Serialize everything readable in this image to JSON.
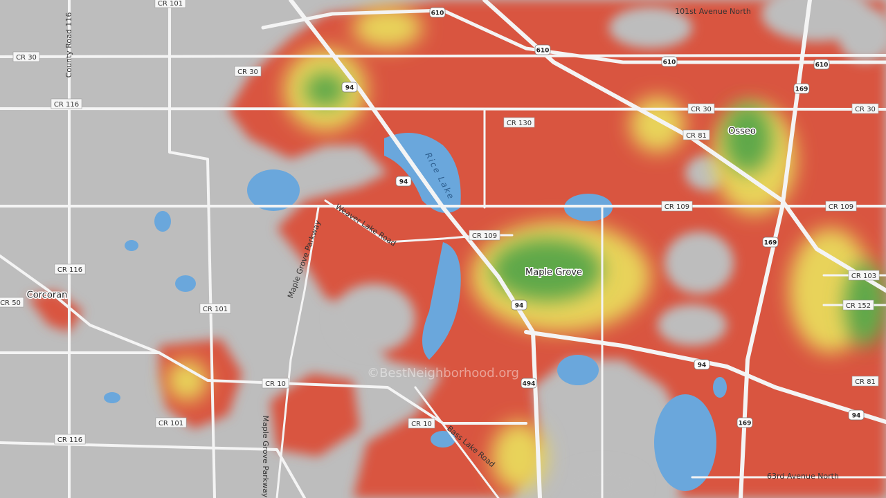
{
  "roads": [
    "CR 101",
    "CR 30",
    "CR 30",
    "CR 116",
    "CR 130",
    "CR 30",
    "CR 30",
    "CR 81",
    "CR 109",
    "CR 109",
    "CR 109",
    "CR 116",
    "CR 50",
    "CR 101",
    "CR 101",
    "CR 10",
    "CR 10",
    "CR 116",
    "CR 103",
    "CR 152",
    "CR 81"
  ],
  "highways": [
    "610",
    "610",
    "610",
    "610",
    "94",
    "94",
    "94",
    "94",
    "94",
    "169",
    "169",
    "169",
    "494"
  ],
  "streets": [
    "County Road 116",
    "101st Avenue North",
    "Weaver Lake Road",
    "Maple Grove Parkway",
    "Maple Grove Parkway",
    "Bass Lake Road",
    "63rd Avenue North"
  ],
  "places": [
    "Corcoran",
    "Maple Grove",
    "Osseo"
  ],
  "water": [
    "Rice Lake"
  ],
  "watermark": "©BestNeighborhood.org"
}
